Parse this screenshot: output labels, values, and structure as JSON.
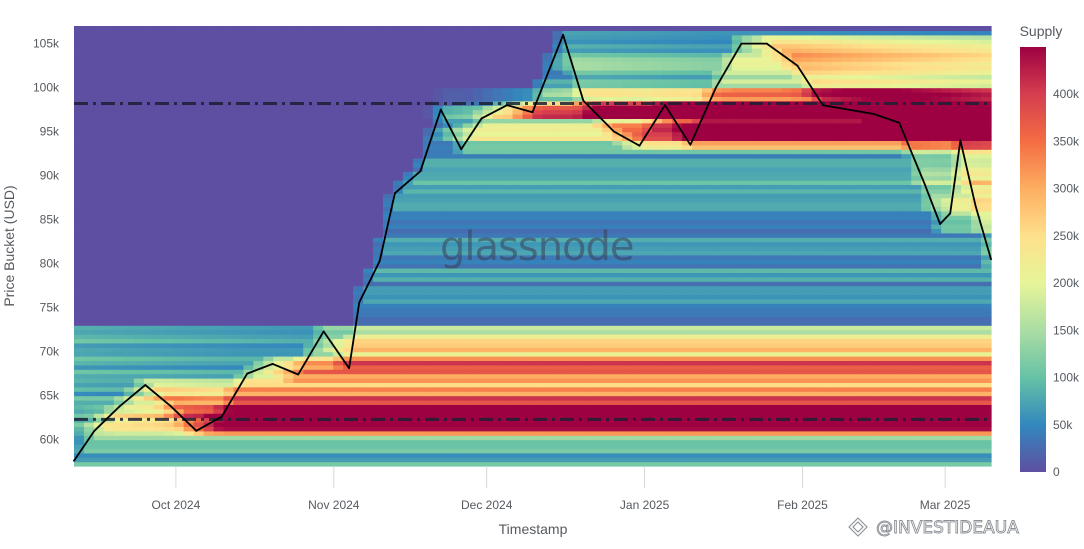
{
  "chart_data": {
    "type": "heatmap",
    "xlabel": "Timestamp",
    "ylabel": "Price Bucket (USD)",
    "x_ticks": [
      "Oct 2024",
      "Nov 2024",
      "Dec 2024",
      "Jan 2025",
      "Feb 2025",
      "Mar 2025"
    ],
    "y_ticks": [
      "60k",
      "65k",
      "70k",
      "75k",
      "80k",
      "85k",
      "90k",
      "95k",
      "100k",
      "105k"
    ],
    "x_range": [
      "2024-09-11",
      "2025-03-10"
    ],
    "y_range": [
      57000,
      107000
    ],
    "colorbar": {
      "title": "Supply",
      "range": [
        0,
        450000
      ],
      "ticks": [
        "0",
        "50k",
        "100k",
        "150k",
        "200k",
        "250k",
        "300k",
        "350k",
        "400k"
      ],
      "colors": [
        "#5e4fa2",
        "#3288bd",
        "#66c2a5",
        "#abdda4",
        "#e6f598",
        "#fee08b",
        "#fdae61",
        "#f46d43",
        "#d53e4f",
        "#9e0142"
      ]
    },
    "reference_lines": [
      98200,
      62300
    ],
    "price_series": {
      "name": "Price",
      "dates": [
        "2024-09-11",
        "2024-09-15",
        "2024-09-20",
        "2024-09-25",
        "2024-09-30",
        "2024-10-05",
        "2024-10-10",
        "2024-10-15",
        "2024-10-20",
        "2024-10-25",
        "2024-10-30",
        "2024-11-04",
        "2024-11-06",
        "2024-11-10",
        "2024-11-13",
        "2024-11-18",
        "2024-11-22",
        "2024-11-26",
        "2024-11-30",
        "2024-12-05",
        "2024-12-10",
        "2024-12-16",
        "2024-12-20",
        "2024-12-26",
        "2024-12-31",
        "2025-01-05",
        "2025-01-10",
        "2025-01-15",
        "2025-01-20",
        "2025-01-25",
        "2025-01-31",
        "2025-02-05",
        "2025-02-10",
        "2025-02-15",
        "2025-02-20",
        "2025-02-25",
        "2025-02-28",
        "2025-03-02",
        "2025-03-04",
        "2025-03-07",
        "2025-03-10"
      ],
      "values": [
        57600,
        61000,
        63800,
        66200,
        63800,
        61000,
        62600,
        67500,
        68600,
        67400,
        72300,
        68100,
        75600,
        80300,
        88000,
        90500,
        97500,
        93000,
        96500,
        98000,
        97200,
        106000,
        98500,
        95000,
        93400,
        98000,
        93500,
        100000,
        105000,
        105000,
        102500,
        98000,
        97500,
        97000,
        96000,
        89000,
        84500,
        85700,
        94000,
        86500,
        80500
      ]
    }
  },
  "watermark": "glassnode",
  "credit": "@INVESTIDEAUA"
}
